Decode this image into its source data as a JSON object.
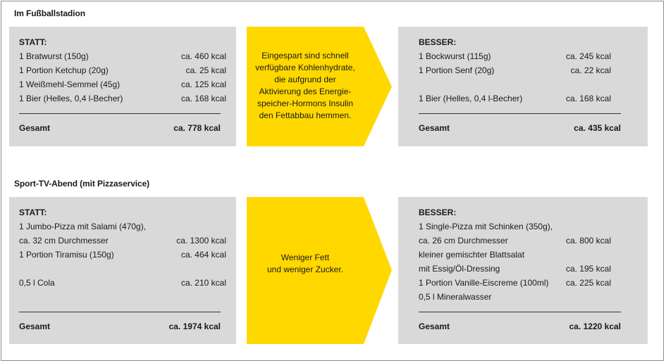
{
  "colors": {
    "box_bg": "#d9d9d9",
    "arrow": "#ffd800",
    "frame": "#8c8c8c"
  },
  "sections": [
    {
      "title": "Im Fußballstadion",
      "statt": {
        "heading": "STATT:",
        "rows": [
          {
            "item": "1 Bratwurst (150g)",
            "kcal": "ca. 460 kcal"
          },
          {
            "item": "1 Portion Ketchup (20g)",
            "kcal": "ca. 25 kcal"
          },
          {
            "item": "1 Weißmehl-Semmel (45g)",
            "kcal": "ca. 125 kcal"
          },
          {
            "item": "1 Bier (Helles, 0,4 l-Becher)",
            "kcal": "ca. 168 kcal"
          }
        ],
        "total_label": "Gesamt",
        "total_value": "ca. 778 kcal"
      },
      "arrow_text": [
        "Eingespart sind schnell",
        "verfügbare Kohlenhydrate,",
        "die aufgrund der",
        "Aktivierung des Energie-",
        "speicher-Hormons Insulin",
        "den Fettabbau hemmen."
      ],
      "besser": {
        "heading": "BESSER:",
        "rows": [
          {
            "item": "1 Bockwurst (115g)",
            "kcal": "ca. 245 kcal"
          },
          {
            "item": "1 Portion Senf (20g)",
            "kcal": "ca. 22 kcal"
          },
          {
            "item": "",
            "kcal": ""
          },
          {
            "item": "1 Bier (Helles, 0,4 l-Becher)",
            "kcal": "ca. 168 kcal"
          }
        ],
        "total_label": "Gesamt",
        "total_value": "ca. 435 kcal"
      }
    },
    {
      "title": "Sport-TV-Abend (mit Pizzaservice)",
      "statt": {
        "heading": "STATT:",
        "rows": [
          {
            "item": "1 Jumbo-Pizza mit Salami (470g),",
            "kcal": ""
          },
          {
            "item": "ca. 32 cm Durchmesser",
            "kcal": "ca. 1300 kcal"
          },
          {
            "item": "1 Portion Tiramisu (150g)",
            "kcal": "ca. 464 kcal"
          },
          {
            "item": "",
            "kcal": ""
          },
          {
            "item": "0,5 l Cola",
            "kcal": "ca. 210 kcal"
          }
        ],
        "total_label": "Gesamt",
        "total_value": "ca. 1974 kcal"
      },
      "arrow_text": [
        "Weniger Fett",
        "und weniger Zucker."
      ],
      "besser": {
        "heading": "BESSER:",
        "rows": [
          {
            "item": "1 Single-Pizza mit Schinken (350g),",
            "kcal": ""
          },
          {
            "item": "ca. 26 cm Durchmesser",
            "kcal": "ca. 800 kcal"
          },
          {
            "item": "kleiner gemischter Blattsalat",
            "kcal": ""
          },
          {
            "item": "mit Essig/Öl-Dressing",
            "kcal": "ca. 195 kcal"
          },
          {
            "item": "1 Portion Vanille-Eiscreme (100ml)",
            "kcal": "ca. 225 kcal"
          },
          {
            "item": "0,5 l Mineralwasser",
            "kcal": ""
          }
        ],
        "total_label": "Gesamt",
        "total_value": "ca. 1220 kcal"
      }
    }
  ]
}
